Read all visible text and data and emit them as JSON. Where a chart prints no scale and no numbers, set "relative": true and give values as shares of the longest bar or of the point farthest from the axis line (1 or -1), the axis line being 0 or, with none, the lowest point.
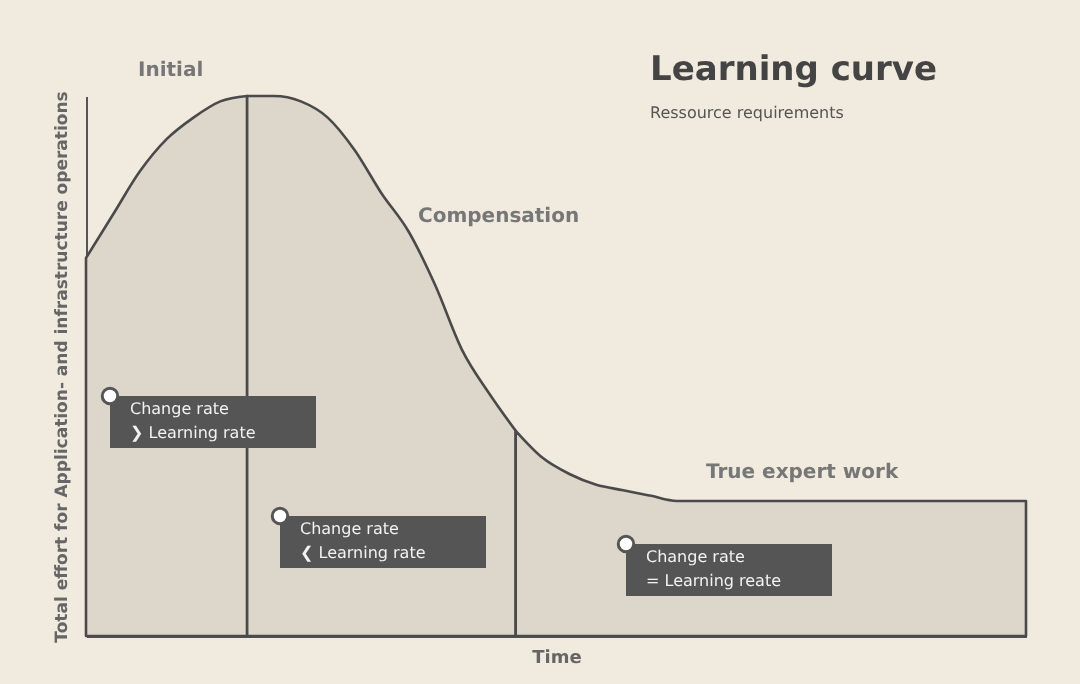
{
  "chart_data": {
    "type": "area",
    "relative": true,
    "title": "Learning curve",
    "subtitle": "Ressource requirements",
    "xlabel": "Time",
    "ylabel": "Total effort for Application- and infrastructure operations",
    "categories": [
      null,
      null,
      null,
      null,
      null,
      null,
      null,
      null,
      null,
      null,
      null,
      null,
      null,
      null,
      null,
      null,
      null,
      null,
      null,
      null,
      null,
      null,
      null,
      null,
      null,
      null,
      null,
      null,
      null,
      null,
      null,
      null,
      null,
      null,
      null,
      null
    ],
    "series": [
      {
        "color": "#dcd6cb",
        "values": [
          0.7,
          0.78,
          0.86,
          0.92,
          0.96,
          0.99,
          1.0,
          null,
          null,
          null,
          null,
          null,
          null,
          null,
          null,
          null,
          null,
          null,
          null,
          null,
          null,
          null,
          null,
          null,
          null,
          null,
          null,
          null,
          null,
          null,
          null,
          null,
          null,
          null,
          null,
          null
        ]
      },
      {
        "color": "#dcd6cb",
        "values": [
          null,
          null,
          null,
          null,
          null,
          null,
          1.0,
          1.0,
          0.99,
          0.96,
          0.9,
          0.82,
          0.75,
          0.65,
          0.53,
          0.45,
          0.38,
          null,
          null,
          null,
          null,
          null,
          null,
          null,
          null,
          null,
          null,
          null,
          null,
          null,
          null,
          null,
          null,
          null,
          null,
          null
        ]
      },
      {
        "color": "#dcd6cb",
        "values": [
          null,
          null,
          null,
          null,
          null,
          null,
          null,
          null,
          null,
          null,
          null,
          null,
          null,
          null,
          null,
          null,
          0.38,
          0.33,
          0.3,
          0.28,
          0.27,
          0.26,
          0.25,
          0.25,
          0.25,
          0.25,
          0.25,
          0.25,
          0.25,
          0.25,
          0.25,
          0.25,
          0.25,
          0.25,
          0.25,
          0.25
        ]
      }
    ],
    "annotations": [
      "Initial",
      "Compensation",
      "True expert work",
      "Change rate\n❯ Learning rate",
      "Change rate\n❮ Learning rate",
      "Change rate\n= Learning reate"
    ],
    "grid": false
  }
}
